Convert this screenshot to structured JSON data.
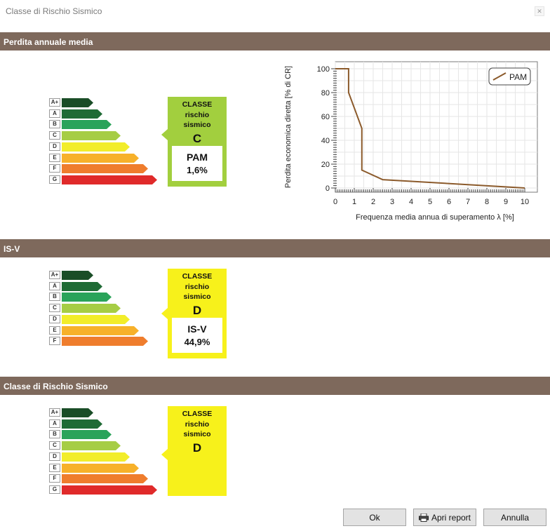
{
  "window": {
    "title": "Classe di Rischio Sismico",
    "close_glyph": "✕"
  },
  "sections": {
    "pam": {
      "title": "Perdita annuale media"
    },
    "isv": {
      "title": "IS-V"
    },
    "crs": {
      "title": "Classe di Rischio Sismico"
    }
  },
  "scale": {
    "labels": [
      "A+",
      "A",
      "B",
      "C",
      "D",
      "E",
      "F",
      "G"
    ],
    "colors": [
      "#1a4d27",
      "#1f6b35",
      "#2aa35a",
      "#a6cd45",
      "#f2ed2a",
      "#f7b12a",
      "#ef7d2d",
      "#e02a2a"
    ]
  },
  "pam_box": {
    "title_lines": [
      "CLASSE",
      "rischio",
      "sismico"
    ],
    "letter": "C",
    "value_label": "PAM",
    "value": "1,6%",
    "color": "#a2cf3e"
  },
  "isv_box": {
    "title_lines": [
      "CLASSE",
      "rischio",
      "sismico"
    ],
    "letter": "D",
    "value_label": "IS-V",
    "value": "44,9%",
    "color": "#f7f11b"
  },
  "crs_box": {
    "title_lines": [
      "CLASSE",
      "rischio",
      "sismico"
    ],
    "letter": "D",
    "color": "#f7f11b"
  },
  "chart_data": {
    "type": "line",
    "xlabel": "Frequenza media annua di superamento λ [%]",
    "ylabel": "Perdita economica diretta [% di CR]",
    "xlim": [
      0,
      10
    ],
    "ylim": [
      0,
      100
    ],
    "xticks": [
      "0",
      "1",
      "2",
      "3",
      "4",
      "5",
      "6",
      "7",
      "8",
      "9",
      "10"
    ],
    "yticks": [
      "0",
      "20",
      "40",
      "60",
      "80",
      "100"
    ],
    "grid": true,
    "legend_position": "top-right",
    "series_color": "#8b5a2b",
    "series": [
      {
        "name": "PAM",
        "points": [
          [
            0,
            100
          ],
          [
            0.7,
            100
          ],
          [
            0.7,
            80
          ],
          [
            1.4,
            50
          ],
          [
            1.4,
            15
          ],
          [
            2.5,
            7
          ],
          [
            10,
            0
          ]
        ]
      }
    ]
  },
  "buttons": {
    "ok": "Ok",
    "report": "Apri report",
    "cancel": "Annulla"
  }
}
